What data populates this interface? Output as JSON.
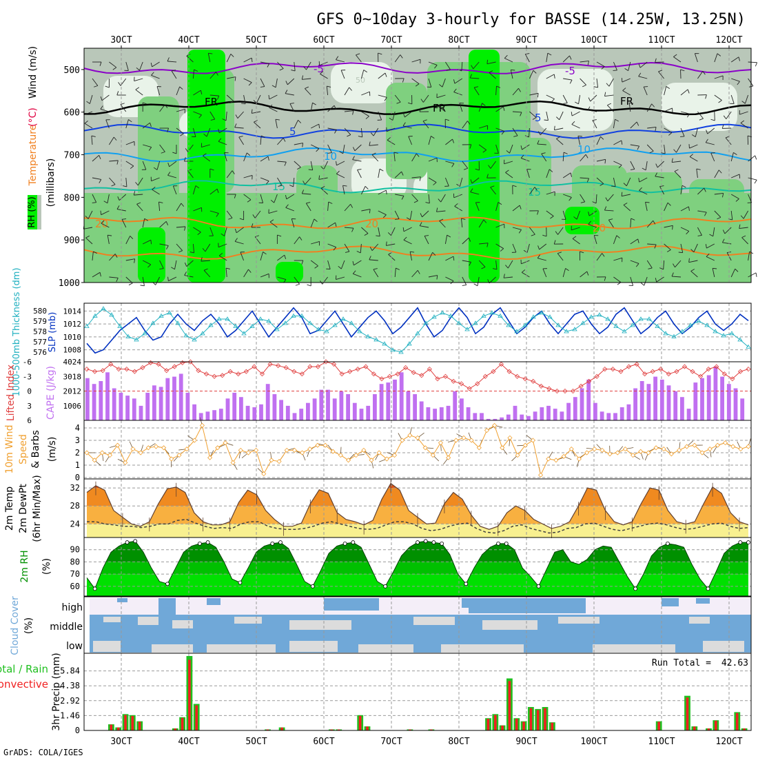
{
  "title": "GFS 0~10day 3-hourly for BASSE (14.25W, 13.25N)",
  "credit": "GrADS: COLA/IGES",
  "colors": {
    "rh_light": "#e9f3e9",
    "rh_mid": "#b9c7b9",
    "rh_green": "#7fd07f",
    "rh_bright": "#00f000",
    "temp_purple": "#8a00c8",
    "temp_black": "#000000",
    "temp_blue": "#1040e0",
    "temp_lightblue": "#10a0f0",
    "temp_teal": "#10c0a0",
    "temp_orange": "#f08020",
    "temp_red": "#e00040",
    "slp_line": "#0030c0",
    "thk_line": "#20b0c0",
    "cape_bar": "#c070f0",
    "li_line": "#e04040",
    "wind_line": "#f0a030",
    "temp_fill_hot": "#e05010",
    "temp_fill_warm": "#f08a20",
    "temp_fill_mild": "#f8b040",
    "temp_fill_cool": "#f8f090",
    "rh2m_dark": "#009000",
    "rh2m_mid": "#00c000",
    "rh2m_light": "#00e000",
    "cloud_blue": "#70a8d8",
    "cloud_grey": "#dcdcdc",
    "cloud_high_bg": "#f4eef8",
    "precip_green": "#20c020",
    "precip_red": "#f02020"
  },
  "chart_data": [
    {
      "type": "heatmap",
      "panel": "upper-air",
      "ylabel_rh": "RH (%)",
      "ylabel_temperature": "Temperature",
      "ylabel_temperature_unit": "(°C)",
      "ylabel_wind": "Wind (m/s)",
      "ylabel_pressure": "(millibars)",
      "yticks": [
        500,
        600,
        700,
        800,
        900,
        1000
      ],
      "ylim": [
        450,
        1000
      ],
      "contours": [
        {
          "label": "-5",
          "level_mb": 497,
          "color": "temp_purple"
        },
        {
          "label": "FR",
          "level_mb": 590,
          "color": "temp_black"
        },
        {
          "label": "5",
          "level_mb": 645,
          "color": "temp_blue"
        },
        {
          "label": "10",
          "level_mb": 700,
          "color": "temp_lightblue"
        },
        {
          "label": "15",
          "level_mb": 775,
          "color": "temp_teal"
        },
        {
          "label": "20",
          "level_mb": 860,
          "color": "temp_orange"
        },
        {
          "label": "25",
          "level_mb": 930,
          "color": "temp_orange"
        }
      ],
      "contour_labels_shown": [
        "-5",
        "-5",
        "FR",
        "FR",
        "FR",
        "5",
        "5",
        "10",
        "10",
        "15",
        "15",
        "20",
        "20",
        "20",
        "50",
        "50"
      ]
    },
    {
      "type": "line",
      "panel": "thickness-slp",
      "ylabel_left": "1000-500mb Thickness (dm)",
      "ylabel_right": "SLP (mb)",
      "thickness_ticks": [
        576,
        577,
        578,
        579,
        580
      ],
      "slp_ticks": [
        1008,
        1010,
        1012,
        1014
      ],
      "series": [
        {
          "name": "SLP",
          "values": [
            1009,
            1007.5,
            1008,
            1009.5,
            1011,
            1012,
            1013,
            1011,
            1009.5,
            1010,
            1012,
            1013.5,
            1012,
            1011,
            1012.5,
            1013.5,
            1012,
            1010,
            1011,
            1012.5,
            1014,
            1012,
            1010,
            1011.5,
            1013,
            1014.5,
            1013,
            1010.5,
            1011,
            1012.5,
            1014,
            1012,
            1010,
            1011.5,
            1013,
            1014,
            1012.5,
            1010.5,
            1011.5,
            1013,
            1014.5,
            1012,
            1010,
            1011,
            1013,
            1014.5,
            1013,
            1010.5,
            1011.5,
            1013.5,
            1014.5,
            1012.5,
            1010.5,
            1011.5,
            1013,
            1014,
            1012,
            1010.5,
            1012,
            1013.5,
            1014,
            1012,
            1010.5,
            1011.5,
            1013.5,
            1014.5,
            1012.5,
            1010.5,
            1011.5,
            1013,
            1014,
            1012,
            1010.5,
            1011.5,
            1013,
            1014,
            1012,
            1011,
            1012,
            1013.5,
            1012.5
          ]
        },
        {
          "name": "Thickness",
          "values": [
            578.5,
            579.5,
            580.2,
            579.6,
            578.5,
            577.5,
            577.2,
            577.8,
            578.8,
            579.5,
            579.8,
            578.8,
            577.6,
            577.2,
            577.8,
            578.6,
            579.2,
            579.2,
            578.5,
            577.8,
            578.5,
            579.2,
            579.0,
            578.2,
            578.8,
            579.5,
            579.5,
            578.8,
            578.2,
            578.0,
            578.6,
            579.2,
            578.8,
            578.0,
            577.5,
            577.2,
            576.8,
            576.2,
            576.0,
            576.8,
            577.8,
            578.8,
            579.4,
            579.8,
            579.5,
            578.8,
            578.2,
            578.8,
            579.5,
            579.8,
            579.5,
            578.6,
            578.0,
            578.6,
            579.4,
            579.8,
            579.4,
            578.6,
            578.0,
            578.2,
            578.8,
            579.4,
            579.6,
            579.2,
            578.5,
            578.0,
            578.6,
            579.2,
            579.2,
            578.5,
            577.8,
            577.5,
            578.0,
            578.6,
            579.0,
            578.6,
            578.0,
            577.6,
            577.8,
            577.2,
            576.5
          ]
        }
      ]
    },
    {
      "type": "bar",
      "panel": "cape-li",
      "ylabel_left": "Lifted Index",
      "ylabel_right": "CAPE (J/kg)",
      "li_ticks": [
        -6,
        -3,
        0,
        3,
        6
      ],
      "cape_ticks": [
        1006,
        2012,
        3018,
        4024
      ],
      "series": [
        {
          "name": "CAPE",
          "values": [
            2900,
            2500,
            2700,
            3300,
            2200,
            1900,
            1700,
            1500,
            1000,
            1900,
            2400,
            2300,
            2900,
            3000,
            3200,
            1900,
            1100,
            500,
            600,
            700,
            800,
            1500,
            1900,
            1600,
            1000,
            900,
            1100,
            2500,
            1800,
            1400,
            1000,
            500,
            800,
            1200,
            1500,
            2100,
            2100,
            1500,
            2000,
            1800,
            1200,
            800,
            1000,
            1800,
            2500,
            2600,
            2800,
            3300,
            2000,
            1800,
            1300,
            900,
            800,
            900,
            1000,
            2000,
            1500,
            900,
            500,
            500,
            100,
            100,
            200,
            400,
            1000,
            400,
            300,
            600,
            900,
            1000,
            800,
            600,
            1200,
            1600,
            2200,
            2800,
            1200,
            600,
            500,
            500,
            900,
            1100,
            2200,
            2700,
            2500,
            3000,
            2800,
            2400,
            2000,
            1600,
            800,
            2600,
            2900,
            3100,
            3700,
            3000,
            2500,
            2200,
            1500
          ]
        },
        {
          "name": "Lifted Index",
          "values": [
            -4.5,
            -4.0,
            -4.2,
            -5.5,
            -4.5,
            -4.5,
            -4.0,
            -4.8,
            -5.8,
            -5.5,
            -4.2,
            -5.0,
            -5.8,
            -6.0,
            -4.2,
            -3.5,
            -3.0,
            -3.2,
            -4.0,
            -3.5,
            -4.0,
            -5.0,
            -3.5,
            -5.5,
            -5.2,
            -4.8,
            -4.0,
            -3.5,
            -5.0,
            -5.0,
            -6.0,
            -5.5,
            -3.5,
            -4.0,
            -4.5,
            -5.0,
            -3.5,
            -2.5,
            -3.0,
            -3.5,
            -4.8,
            -3.8,
            -3.2,
            -4.5,
            -2.5,
            -3.0,
            -2.0,
            -1.5,
            -0.5,
            -1.5,
            -3.0,
            -4.0,
            -5.5,
            -4.0,
            -3.0,
            -2.5,
            -2.0,
            -1.0,
            -0.5,
            0,
            0,
            0,
            -1.0,
            -2.0,
            -3.0,
            -4.5,
            -4.5,
            -4.0,
            -5.0,
            -5.5,
            -3.5,
            -4.0,
            -4.5,
            -3.5,
            -4.0,
            -5.0,
            -4.0,
            -3.0,
            -4.5,
            -5.0,
            -3.5,
            -2.5,
            -4.0,
            -4.5
          ]
        }
      ]
    },
    {
      "type": "line",
      "panel": "wind10m",
      "ylabel": "10m Wind Speed & Barbs (m/s)",
      "ylabel_parts": [
        "10m Wind",
        "Speed",
        "& Barbs"
      ],
      "ylabel_unit": "(m/s)",
      "yticks": [
        0,
        1,
        2,
        3,
        4
      ],
      "ylim": [
        0,
        4.5
      ],
      "series": [
        {
          "name": "10m Wind Speed",
          "values": [
            2.0,
            1.4,
            2.0,
            1.8,
            2.6,
            1.2,
            2.3,
            2.0,
            2.4,
            2.5,
            2.4,
            1.5,
            1.8,
            2.3,
            3.0,
            4.2,
            1.6,
            2.4,
            2.8,
            1.2,
            2.2,
            2.0,
            2.2,
            0.3,
            1.4,
            1.3,
            2.2,
            2.2,
            2.0,
            2.3,
            2.6,
            2.6,
            2.1,
            1.8,
            1.4,
            1.8,
            2.2,
            1.4,
            2.0,
            1.5,
            1.8,
            3.0,
            3.4,
            3.2,
            2.4,
            1.8,
            2.8,
            1.6,
            3.0,
            3.2,
            3.0,
            2.4,
            3.8,
            4.2,
            2.4,
            3.2,
            1.8,
            2.6,
            3.0,
            0.2,
            1.5,
            1.4,
            1.7,
            2.3,
            1.5,
            2.0,
            2.3,
            2.2,
            1.9,
            2.0,
            2.3,
            1.8,
            2.1,
            2.0,
            2.4,
            2.3,
            1.9,
            2.2,
            2.5,
            2.6,
            2.0,
            2.3,
            2.6,
            2.8,
            2.5,
            2.3,
            2.5
          ]
        }
      ]
    },
    {
      "type": "area",
      "panel": "temp2m",
      "ylabel_parts": [
        "2m Temp",
        "2m DewPt",
        "(6hr Min/Max)"
      ],
      "yticks": [
        24,
        28,
        32
      ],
      "ylim": [
        21,
        34
      ],
      "series": [
        {
          "name": "2m Temp",
          "values": [
            31,
            32.5,
            31.5,
            27,
            25.5,
            24,
            23.5,
            24.5,
            28.5,
            31.8,
            32.2,
            31.0,
            26.5,
            24.5,
            23.8,
            23.8,
            24.5,
            28.8,
            31.5,
            30.5,
            27,
            25,
            23.5,
            23.5,
            24.2,
            28.5,
            31.6,
            30.8,
            26.5,
            25.0,
            24.5,
            23.8,
            24.8,
            29.5,
            33.0,
            31.5,
            27,
            25.5,
            24.0,
            24.2,
            28.5,
            31.0,
            29.5,
            26,
            23.5,
            22.8,
            23.5,
            26.5,
            28.0,
            27.0,
            25,
            24,
            23.0,
            23.5,
            24.5,
            28.0,
            32.0,
            31.5,
            27,
            24.5,
            23.8,
            24.5,
            28.5,
            32.0,
            31.5,
            27,
            24.5,
            24.0,
            24.5,
            28.5,
            32.2,
            30.8,
            26.5,
            24.5,
            23.8
          ]
        },
        {
          "name": "2m DewPt",
          "values": [
            24.5,
            24.5,
            24,
            23.8,
            23.5,
            23.5,
            23.2,
            23.5,
            24,
            24,
            24.8,
            25,
            24.2,
            23.5,
            23.0,
            23.2,
            23.0,
            24,
            24.5,
            24.5,
            23.5,
            23.0,
            22.8,
            22.8,
            23.0,
            23.5,
            24.2,
            24.5,
            24,
            23.5,
            23.0,
            22.8,
            23.0,
            23.8,
            24.5,
            24.5,
            24.0,
            23.0,
            22.5,
            22.8,
            23.5,
            24.0,
            24.2,
            23.0,
            22.2,
            22.0,
            22.5,
            23.5,
            23.8,
            23.0,
            22.5,
            22.0,
            22.2,
            23.0,
            23.2,
            24.0,
            24.2,
            23.5,
            22.8,
            22.5,
            23.0,
            23.5,
            24.0,
            24.2,
            23.8,
            23.2,
            22.8,
            23.0,
            23.5,
            24.0,
            24.2,
            23.5,
            23.0,
            23.2
          ]
        }
      ]
    },
    {
      "type": "area",
      "panel": "rh2m",
      "ylabel": "2m RH",
      "yunit": "(%)",
      "yticks": [
        60,
        70,
        80,
        90
      ],
      "ylim": [
        52,
        100
      ],
      "series": [
        {
          "name": "2m RH",
          "values": [
            67,
            58,
            75,
            88,
            93,
            96,
            97,
            88,
            75,
            64,
            62,
            75,
            88,
            93,
            95,
            96,
            92,
            80,
            66,
            63,
            75,
            88,
            93,
            95,
            96,
            91,
            78,
            64,
            60,
            73,
            87,
            93,
            95,
            96,
            92,
            78,
            64,
            60,
            72,
            85,
            92,
            96,
            97,
            96,
            95,
            86,
            70,
            62,
            75,
            86,
            92,
            95,
            95,
            90,
            75,
            68,
            60,
            74,
            88,
            90,
            80,
            78,
            82,
            90,
            93,
            92,
            80,
            68,
            58,
            70,
            85,
            92,
            95,
            94,
            92,
            78,
            66,
            58,
            72,
            87,
            93,
            96,
            96
          ]
        }
      ]
    },
    {
      "type": "table",
      "panel": "cloud",
      "ylabel": "Cloud Cover",
      "yunit": "(%)",
      "rows": [
        "high",
        "middle",
        "low"
      ]
    },
    {
      "type": "bar",
      "panel": "precip",
      "ylabel_left_top": "Total / Rain",
      "ylabel_left_bottom": "Convective",
      "ylabel": "3hr Precip (mm)",
      "yticks": [
        "0",
        "1.46",
        "2.92",
        "4.38",
        "5.84"
      ],
      "ylim": [
        0,
        7.3
      ],
      "run_total_label": "Run Total =",
      "run_total_value": "42.63",
      "series": [
        {
          "name": "Total",
          "values": [
            0,
            0,
            0,
            0.6,
            0.3,
            1.6,
            1.5,
            0.9,
            0,
            0,
            0,
            0,
            0.2,
            1.3,
            7.3,
            2.6,
            0,
            0,
            0,
            0,
            0,
            0,
            0,
            0,
            0,
            0.1,
            0,
            0.3,
            0,
            0,
            0,
            0,
            0,
            0,
            0.1,
            0.1,
            0,
            0,
            1.5,
            0.4,
            0,
            0,
            0,
            0,
            0,
            0.1,
            0,
            0,
            0.1,
            0,
            0,
            0,
            0,
            0,
            0,
            0,
            1.2,
            1.6,
            0.5,
            5.1,
            1.2,
            0.9,
            2.3,
            2.1,
            2.3,
            0.8,
            0,
            0,
            0,
            0,
            0,
            0,
            0,
            0,
            0,
            0,
            0,
            0,
            0,
            0,
            0.9,
            0,
            0,
            0,
            3.4,
            0.4,
            0,
            0.2,
            1.0,
            0,
            0,
            1.8,
            0.2
          ]
        }
      ]
    },
    {
      "type": "line",
      "panel": "time-axis",
      "x_top": [
        "3OCT",
        "4OCT",
        "5OCT",
        "6OCT",
        "7OCT",
        "8OCT",
        "9OCT",
        "10OCT",
        "11OCT",
        "12OCT"
      ],
      "x_bottom": [
        "3OCT",
        "4OCT",
        "5OCT",
        "6OCT",
        "7OCT",
        "8OCT",
        "9OCT",
        "10OCT",
        "11OCT",
        "12OCT"
      ]
    }
  ]
}
